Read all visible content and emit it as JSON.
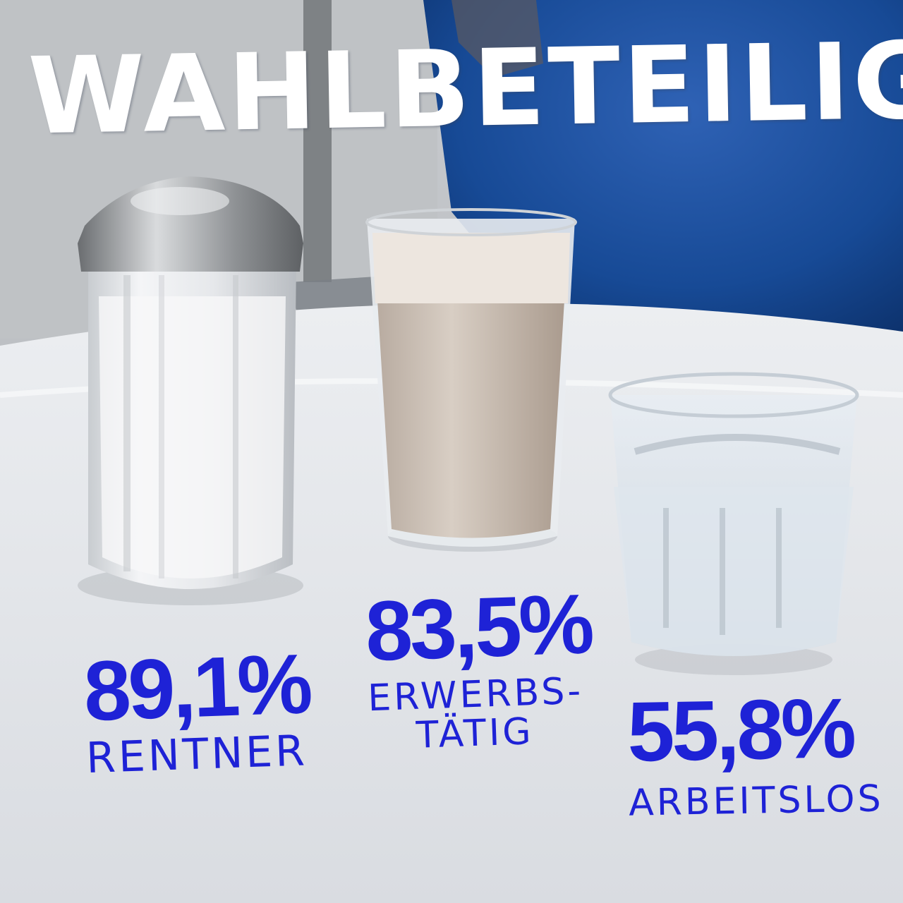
{
  "title": "WAHLBETEILIGUNG",
  "colors": {
    "ink": "#1e22d6",
    "title": "#ffffff"
  },
  "groups": [
    {
      "object": "sugar-dispenser",
      "value": "89,1%",
      "label": "RENTNER"
    },
    {
      "object": "milk-coffee-glass",
      "value": "83,5%",
      "label": "ERWERBS-\nTÄTIG"
    },
    {
      "object": "water-glass",
      "value": "55,8%",
      "label": "ARBEITSLOS"
    }
  ]
}
